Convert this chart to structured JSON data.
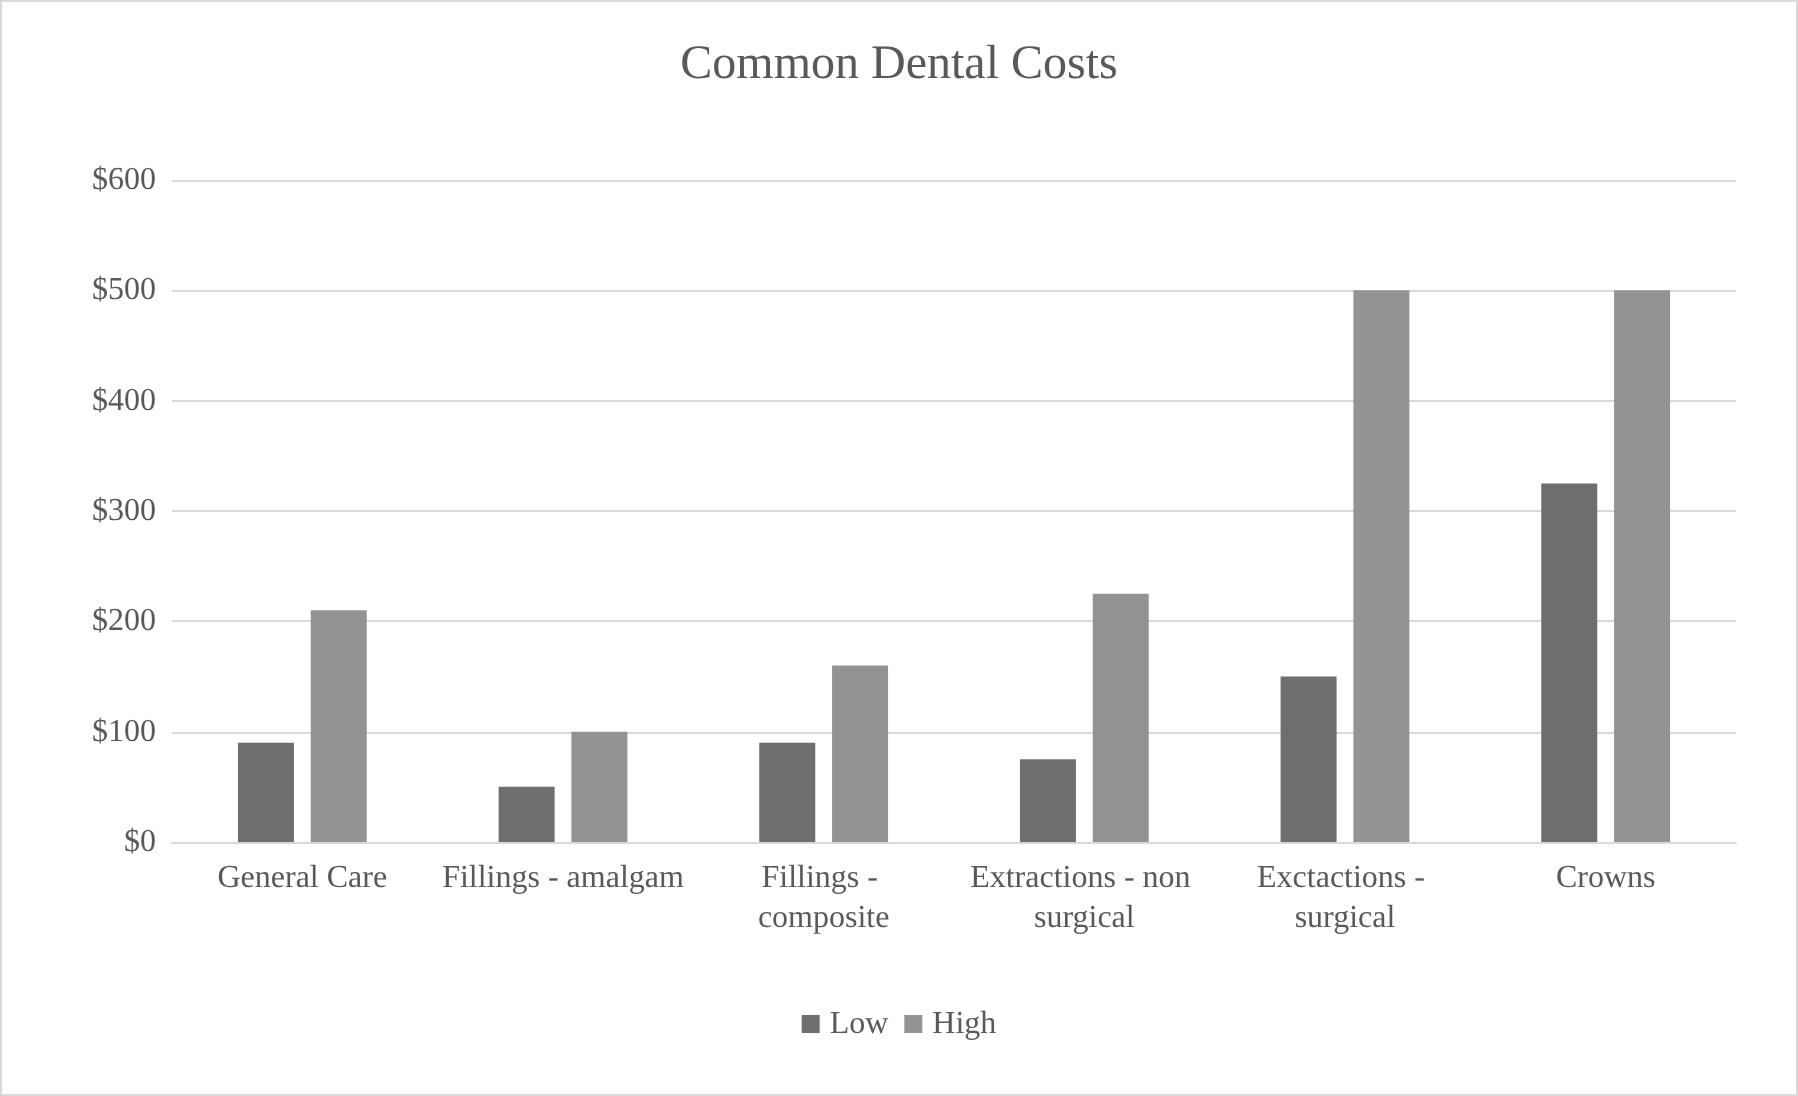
{
  "chart_data": {
    "type": "bar",
    "title": "Common Dental Costs",
    "categories": [
      "General Care",
      "Fillings - amalgam",
      "Fillings - composite",
      "Extractions - non surgical",
      "Exctactions - surgical",
      "Crowns"
    ],
    "series": [
      {
        "name": "Low",
        "color": "#6e6e6e",
        "values": [
          90,
          50,
          90,
          75,
          150,
          325
        ]
      },
      {
        "name": "High",
        "color": "#939393",
        "values": [
          210,
          100,
          160,
          225,
          500,
          500
        ]
      }
    ],
    "ylim": [
      0,
      600
    ],
    "yticks": [
      {
        "value": 0,
        "label": "$0"
      },
      {
        "value": 100,
        "label": "$100"
      },
      {
        "value": 200,
        "label": "$200"
      },
      {
        "value": 300,
        "label": "$300"
      },
      {
        "value": 400,
        "label": "$400"
      },
      {
        "value": 500,
        "label": "$500"
      },
      {
        "value": 600,
        "label": "$600"
      }
    ],
    "grid": "y",
    "legend": "bottom"
  }
}
